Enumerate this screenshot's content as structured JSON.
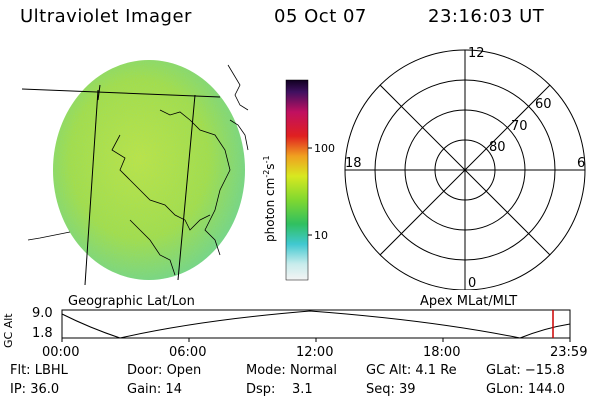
{
  "header": {
    "instrument": "Ultraviolet Imager",
    "date": "05 Oct 07",
    "time": "23:16:03 UT"
  },
  "colorbar": {
    "unit_label": "photon cm",
    "unit_sup1": "-2",
    "unit_mid": "s",
    "unit_sup2": "-1",
    "ticks": [
      "100",
      "10"
    ]
  },
  "map": {
    "label_left": "Geographic Lat/Lon",
    "label_right": "Apex MLat/MLT"
  },
  "polar": {
    "mlt_top": "12",
    "mlt_left": "18",
    "mlt_right": "6",
    "mlt_bottom": "0",
    "lat_labels": [
      "60",
      "70",
      "80"
    ]
  },
  "altitude_plot": {
    "ylabel": "GC Alt",
    "y_ticks": [
      "9.0",
      "1.8"
    ],
    "x_ticks": [
      "00:00",
      "06:00",
      "12:00",
      "18:00",
      "23:59"
    ]
  },
  "status": {
    "flt_label": "Flt:",
    "flt_value": "LBHL",
    "door_label": "Door:",
    "door_value": "Open",
    "mode_label": "Mode:",
    "mode_value": "Normal",
    "gcalt_label": "GC Alt:",
    "gcalt_value": "4.1 Re",
    "glat_label": "GLat:",
    "glat_value": "−15.8",
    "ip_label": "IP:",
    "ip_value": "36.0",
    "gain_label": "Gain:",
    "gain_value": "14",
    "dsp_label": "Dsp:",
    "dsp_value": "3.1",
    "seq_label": "Seq:",
    "seq_value": "39",
    "glon_label": "GLon:",
    "glon_value": "144.0"
  },
  "colors": {
    "disk_main": "#b8e23a",
    "disk_edge": "#7fd67a",
    "marker": "#cc0000"
  }
}
